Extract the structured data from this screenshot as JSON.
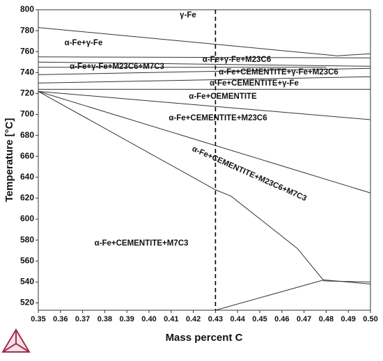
{
  "chart_data": {
    "type": "line",
    "xlabel": "Mass percent C",
    "ylabel": "Temperature [°C]",
    "xlim": [
      0.35,
      0.5
    ],
    "ylim": [
      513,
      800
    ],
    "xticks": [
      0.35,
      0.36,
      0.37,
      0.38,
      0.39,
      {
        "value": 0.4,
        "label": "0.40"
      },
      0.41,
      0.42,
      0.43,
      0.44,
      0.45,
      0.46,
      0.47,
      0.48,
      0.49,
      {
        "value": 0.5,
        "label": "0.50"
      }
    ],
    "yticks": [
      520,
      540,
      560,
      580,
      600,
      620,
      640,
      660,
      680,
      700,
      720,
      740,
      760,
      780,
      800
    ],
    "vline": 0.43,
    "series": [
      {
        "color": "#333333",
        "x": [
          0.35,
          0.485,
          0.5
        ],
        "values": [
          783,
          756,
          758
        ]
      },
      {
        "color": "#333333",
        "x": [
          0.35,
          0.5
        ],
        "values": [
          755,
          754
        ]
      },
      {
        "color": "#333333",
        "x": [
          0.35,
          0.5
        ],
        "values": [
          750,
          746
        ]
      },
      {
        "color": "#333333",
        "x": [
          0.35,
          0.48
        ],
        "values": [
          745,
          745
        ]
      },
      {
        "color": "#333333",
        "x": [
          0.35,
          0.5
        ],
        "values": [
          738,
          744
        ]
      },
      {
        "color": "#333333",
        "x": [
          0.35,
          0.5
        ],
        "values": [
          730,
          736
        ]
      },
      {
        "color": "#333333",
        "x": [
          0.35,
          0.5
        ],
        "values": [
          724,
          724
        ]
      },
      {
        "color": "#333333",
        "x": [
          0.35,
          0.5
        ],
        "values": [
          722,
          695
        ]
      },
      {
        "color": "#333333",
        "x": [
          0.35,
          0.5
        ],
        "values": [
          722,
          625
        ]
      },
      {
        "color": "#333333",
        "x": [
          0.35,
          0.43,
          0.437,
          0.467,
          0.479,
          0.5
        ],
        "values": [
          722,
          628,
          622,
          572,
          541,
          540
        ]
      },
      {
        "color": "#333333",
        "x": [
          0.43,
          0.479,
          0.5
        ],
        "values": [
          513,
          542,
          538
        ]
      }
    ],
    "annotations": [
      "γ-Fe",
      "α-Fe+γ-Fe",
      "α-Fe+γ-Fe+M23C6",
      "α-Fe+γ-Fe+M23C6+M7C3",
      "α-Fe+CEMENTITE+γ-Fe+M23C6",
      "α-Fe+CEMENTITE+γ-Fe",
      "α-Fe+CEMENTITE",
      "α-Fe+CEMENTITE+M23C6",
      "α-Fe+CEMENTITE+M23C6+M7C3",
      "α-Fe+CEMENTITE+M7C3"
    ]
  }
}
